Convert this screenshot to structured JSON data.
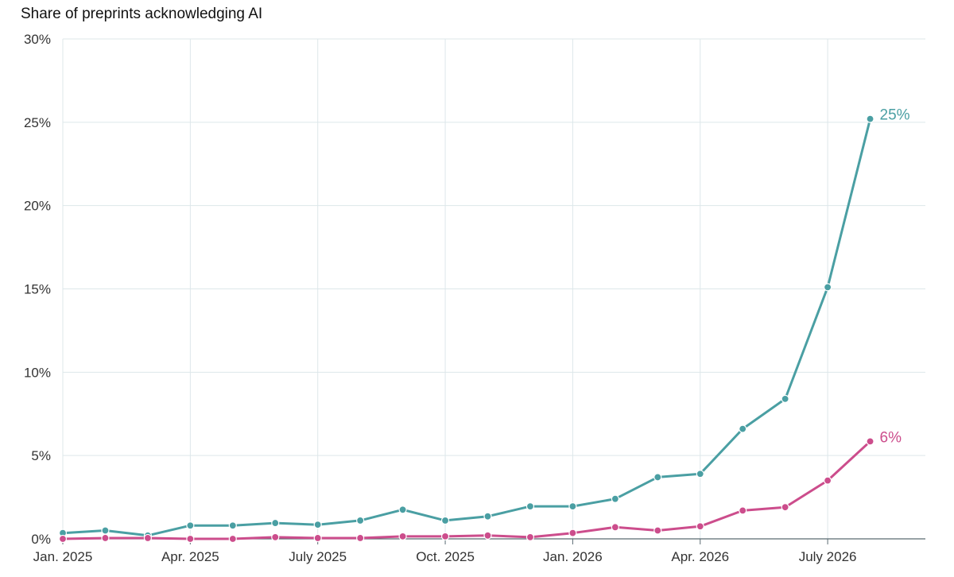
{
  "chart_data": {
    "type": "line",
    "title": "Share of preprints acknowledging AI",
    "xlabel": "",
    "ylabel": "",
    "x_range": [
      "2025-01",
      "2026-09"
    ],
    "ylim": [
      0,
      30
    ],
    "y_ticks": [
      {
        "value": 0,
        "label": "0%"
      },
      {
        "value": 5,
        "label": "5%"
      },
      {
        "value": 10,
        "label": "10%"
      },
      {
        "value": 15,
        "label": "15%"
      },
      {
        "value": 20,
        "label": "20%"
      },
      {
        "value": 25,
        "label": "25%"
      },
      {
        "value": 30,
        "label": "30%"
      }
    ],
    "x_ticks": [
      {
        "value": "2025-01",
        "label": "Jan. 2025"
      },
      {
        "value": "2025-04",
        "label": "Apr. 2025"
      },
      {
        "value": "2025-07",
        "label": "July 2025"
      },
      {
        "value": "2025-10",
        "label": "Oct. 2025"
      },
      {
        "value": "2026-01",
        "label": "Jan. 2026"
      },
      {
        "value": "2026-04",
        "label": "Apr. 2026"
      },
      {
        "value": "2026-07",
        "label": "July 2026"
      }
    ],
    "grid": true,
    "legend": "none",
    "x": [
      "2025-01",
      "2025-02",
      "2025-03",
      "2025-04",
      "2025-05",
      "2025-06",
      "2025-07",
      "2025-08",
      "2025-09",
      "2025-10",
      "2025-11",
      "2025-12",
      "2026-01",
      "2026-02",
      "2026-03",
      "2026-04",
      "2026-05",
      "2026-06",
      "2026-07",
      "2026-08"
    ],
    "series": [
      {
        "color": "#4a9fa3",
        "end_label": "25%",
        "values": [
          0.35,
          0.5,
          0.2,
          0.8,
          0.8,
          0.95,
          0.85,
          1.1,
          1.75,
          1.1,
          1.35,
          1.95,
          1.95,
          2.4,
          3.7,
          3.9,
          6.6,
          8.4,
          15.1,
          25.2
        ]
      },
      {
        "color": "#cc4d8c",
        "end_label": "6%",
        "values": [
          0.0,
          0.05,
          0.05,
          0.0,
          0.0,
          0.1,
          0.05,
          0.05,
          0.15,
          0.15,
          0.2,
          0.1,
          0.35,
          0.7,
          0.5,
          0.75,
          1.7,
          1.9,
          3.5,
          5.85
        ]
      }
    ]
  }
}
